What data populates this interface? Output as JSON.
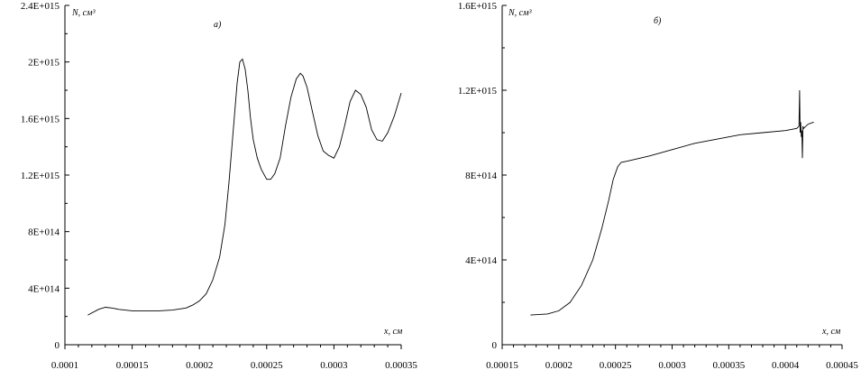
{
  "chart_data": [
    {
      "type": "line",
      "panel_label": "а)",
      "ylabel": "N, см³",
      "xlabel": "x, см",
      "xlim": [
        0.0001,
        0.00035
      ],
      "ylim": [
        0,
        2400000000000000.0
      ],
      "x_ticks": [
        0.0001,
        0.00015,
        0.0002,
        0.00025,
        0.0003,
        0.00035
      ],
      "x_tick_labels": [
        "0.0001",
        "0.00015",
        "0.0002",
        "0.00025",
        "0.0003",
        "0.00035"
      ],
      "y_ticks": [
        0,
        400000000000000.0,
        800000000000000.0,
        1200000000000000.0,
        1600000000000000.0,
        2000000000000000.0,
        2400000000000000.0
      ],
      "y_tick_labels": [
        "0",
        "4E+014",
        "8E+014",
        "1.2E+015",
        "1.6E+015",
        "2E+015",
        "2.4E+015"
      ],
      "series": [
        {
          "x": [
            0.000117,
            0.000125,
            0.00013,
            0.000135,
            0.00014,
            0.00015,
            0.00016,
            0.00017,
            0.00018,
            0.00019,
            0.000195,
            0.0002,
            0.000205,
            0.00021,
            0.000215,
            0.000219,
            0.000222,
            0.000225,
            0.000228,
            0.00023,
            0.000232,
            0.000234,
            0.000236,
            0.000238,
            0.00024,
            0.000243,
            0.000246,
            0.00025,
            0.000253,
            0.000256,
            0.00026,
            0.000264,
            0.000268,
            0.000272,
            0.000275,
            0.000277,
            0.00028,
            0.000284,
            0.000288,
            0.000292,
            0.000296,
            0.0003,
            0.000304,
            0.000308,
            0.000312,
            0.000316,
            0.00032,
            0.000324,
            0.000328,
            0.000332,
            0.000336,
            0.00034,
            0.000345,
            0.00035
          ],
          "y": [
            210000000000000.0,
            250000000000000.0,
            265000000000000.0,
            260000000000000.0,
            250000000000000.0,
            240000000000000.0,
            240000000000000.0,
            240000000000000.0,
            245000000000000.0,
            260000000000000.0,
            280000000000000.0,
            310000000000000.0,
            360000000000000.0,
            460000000000000.0,
            620000000000000.0,
            850000000000000.0,
            1150000000000000.0,
            1500000000000000.0,
            1850000000000000.0,
            2000000000000000.0,
            2020000000000000.0,
            1950000000000000.0,
            1800000000000000.0,
            1600000000000000.0,
            1450000000000000.0,
            1320000000000000.0,
            1240000000000000.0,
            1170000000000000.0,
            1170000000000000.0,
            1210000000000000.0,
            1320000000000000.0,
            1550000000000000.0,
            1750000000000000.0,
            1880000000000000.0,
            1920000000000000.0,
            1900000000000000.0,
            1820000000000000.0,
            1650000000000000.0,
            1480000000000000.0,
            1370000000000000.0,
            1340000000000000.0,
            1320000000000000.0,
            1400000000000000.0,
            1550000000000000.0,
            1720000000000000.0,
            1800000000000000.0,
            1770000000000000.0,
            1680000000000000.0,
            1520000000000000.0,
            1450000000000000.0,
            1440000000000000.0,
            1500000000000000.0,
            1620000000000000.0,
            1780000000000000.0
          ]
        }
      ]
    },
    {
      "type": "line",
      "panel_label": "б)",
      "ylabel": "N, см³",
      "xlabel": "x, см",
      "xlim": [
        0.00015,
        0.00045
      ],
      "ylim": [
        0,
        1600000000000000.0
      ],
      "x_ticks": [
        0.00015,
        0.0002,
        0.00025,
        0.0003,
        0.00035,
        0.0004,
        0.00045
      ],
      "x_tick_labels": [
        "0.00015",
        "0.0002",
        "0.00025",
        "0.0003",
        "0.00035",
        "0.0004",
        "0.00045"
      ],
      "y_ticks": [
        0,
        400000000000000.0,
        800000000000000.0,
        1200000000000000.0,
        1600000000000000.0
      ],
      "y_tick_labels": [
        "0",
        "4E+014",
        "8E+014",
        "1.2E+015",
        "1.6E+015"
      ],
      "series": [
        {
          "x": [
            0.000175,
            0.00019,
            0.0002,
            0.00021,
            0.00022,
            0.00023,
            0.000238,
            0.000244,
            0.000248,
            0.000252,
            0.000255,
            0.00026,
            0.00028,
            0.0003,
            0.00032,
            0.00034,
            0.00036,
            0.00038,
            0.0004,
            0.00041,
            0.000412,
            0.0004125,
            0.000413,
            0.0004135,
            0.000414,
            0.0004145,
            0.000415,
            0.0004155,
            0.000416,
            0.00042,
            0.000425
          ],
          "y": [
            140000000000000.0,
            145000000000000.0,
            160000000000000.0,
            200000000000000.0,
            280000000000000.0,
            400000000000000.0,
            550000000000000.0,
            680000000000000.0,
            780000000000000.0,
            840000000000000.0,
            860000000000000.0,
            865000000000000.0,
            890000000000000.0,
            920000000000000.0,
            950000000000000.0,
            970000000000000.0,
            990000000000000.0,
            1000000000000000.0,
            1010000000000000.0,
            1020000000000000.0,
            1030000000000000.0,
            1200000000000000.0,
            1000000000000000.0,
            1050000000000000.0,
            980000000000000.0,
            1010000000000000.0,
            880000000000000.0,
            1030000000000000.0,
            1020000000000000.0,
            1040000000000000.0,
            1050000000000000.0
          ]
        }
      ]
    }
  ]
}
